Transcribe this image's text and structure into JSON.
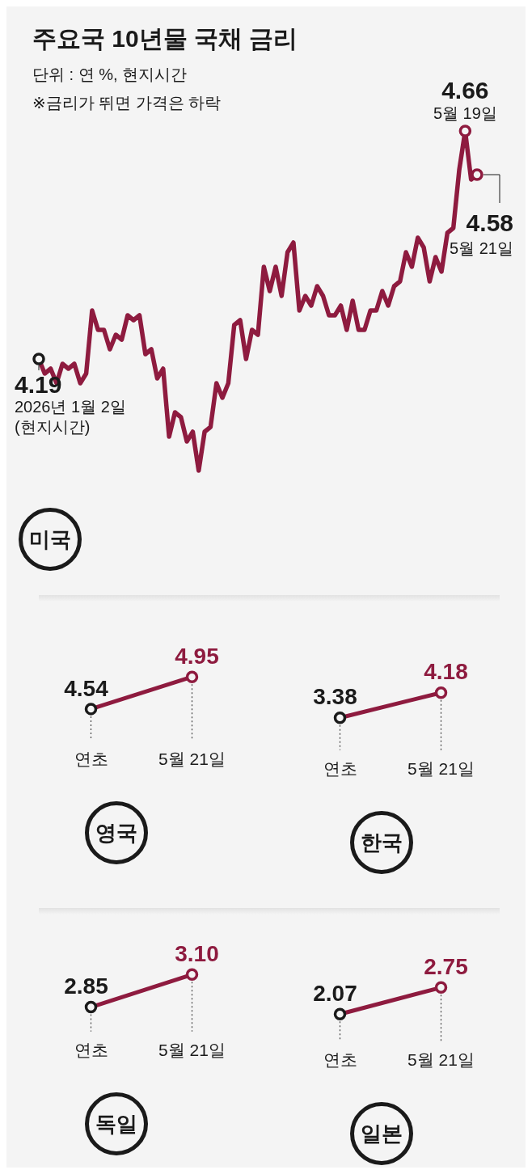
{
  "chart_data": [
    {
      "type": "other",
      "title": "주요국 10년물 국채 금리",
      "subtitle": "단위 : 연 %, 현지시간",
      "annotations": [
        "※금리가 뛰면 가격은 하락"
      ]
    },
    {
      "type": "line",
      "title": "미국",
      "color": "#8e1b3f",
      "categories": [
        null,
        null,
        null,
        null,
        null,
        null,
        null,
        null,
        null,
        null,
        null,
        null,
        null,
        null,
        null,
        null,
        null,
        null,
        null,
        null,
        null,
        null,
        null,
        null,
        null,
        null,
        null,
        null,
        null,
        null,
        null,
        null,
        null,
        null,
        null,
        null,
        null,
        null,
        null,
        null,
        null,
        null,
        null,
        null,
        null,
        null,
        null,
        null,
        null,
        null,
        null,
        null,
        null,
        null,
        null,
        null,
        null,
        null,
        null,
        null,
        null,
        null,
        null,
        null,
        null,
        null,
        null,
        null,
        null,
        null,
        null,
        null,
        null,
        null,
        null
      ],
      "values": [
        4.19,
        4.16,
        4.17,
        4.14,
        4.18,
        4.17,
        4.18,
        4.14,
        4.16,
        4.29,
        4.25,
        4.25,
        4.21,
        4.24,
        4.23,
        4.28,
        4.27,
        4.28,
        4.2,
        4.21,
        4.15,
        4.17,
        4.03,
        4.08,
        4.07,
        4.02,
        4.04,
        3.96,
        4.04,
        4.05,
        4.14,
        4.11,
        4.14,
        4.26,
        4.27,
        4.19,
        4.25,
        4.24,
        4.38,
        4.33,
        4.38,
        4.32,
        4.41,
        4.43,
        4.29,
        4.32,
        4.3,
        4.34,
        4.32,
        4.28,
        4.28,
        4.3,
        4.25,
        4.31,
        4.25,
        4.25,
        4.29,
        4.29,
        4.33,
        4.3,
        4.34,
        4.35,
        4.41,
        4.38,
        4.44,
        4.42,
        4.35,
        4.4,
        4.37,
        4.45,
        4.46,
        4.58,
        4.66,
        4.56,
        4.57
      ],
      "value_labels": [
        "4.19",
        null,
        null,
        null,
        null,
        null,
        null,
        null,
        null,
        null,
        null,
        null,
        null,
        null,
        null,
        null,
        null,
        null,
        null,
        null,
        null,
        null,
        null,
        null,
        null,
        null,
        null,
        null,
        null,
        null,
        null,
        null,
        null,
        null,
        null,
        null,
        null,
        null,
        null,
        null,
        null,
        null,
        null,
        null,
        null,
        null,
        null,
        null,
        null,
        null,
        null,
        null,
        null,
        null,
        null,
        null,
        null,
        null,
        null,
        null,
        null,
        null,
        null,
        null,
        null,
        null,
        null,
        null,
        null,
        null,
        null,
        null,
        "4.66",
        null,
        null
      ],
      "annotations": [
        "2026년 1월 2일\n(현지시간)",
        {
          "text": "5월 19일",
          "y": 4.66
        },
        {
          "text": "4.58\n5월 21일",
          "y": 4.57
        }
      ],
      "legend": false
    },
    {
      "type": "line",
      "title": "영국",
      "categories": [
        "연초",
        "5월 21일"
      ],
      "values": [
        4.54,
        4.95
      ],
      "color": "#8e1b3f",
      "colors": [
        "#1a1a1a",
        "#8e1b3f"
      ],
      "data_labels": true,
      "marker": "circle",
      "legend": false
    },
    {
      "type": "line",
      "title": "한국",
      "categories": [
        "연초",
        "5월 21일"
      ],
      "values": [
        3.38,
        4.18
      ],
      "color": "#8e1b3f",
      "colors": [
        "#1a1a1a",
        "#8e1b3f"
      ],
      "data_labels": true,
      "marker": "circle",
      "legend": false
    },
    {
      "type": "line",
      "title": "독일",
      "categories": [
        "연초",
        "5월 21일"
      ],
      "values": [
        2.85,
        3.1
      ],
      "value_labels": [
        "2.85",
        "3.10"
      ],
      "color": "#8e1b3f",
      "colors": [
        "#1a1a1a",
        "#8e1b3f"
      ],
      "marker": "circle",
      "legend": false
    },
    {
      "type": "line",
      "title": "일본",
      "categories": [
        "연초",
        "5월 21일"
      ],
      "values": [
        2.07,
        2.75
      ],
      "color": "#8e1b3f",
      "colors": [
        "#1a1a1a",
        "#8e1b3f"
      ],
      "data_labels": true,
      "marker": "circle",
      "legend": false
    }
  ]
}
